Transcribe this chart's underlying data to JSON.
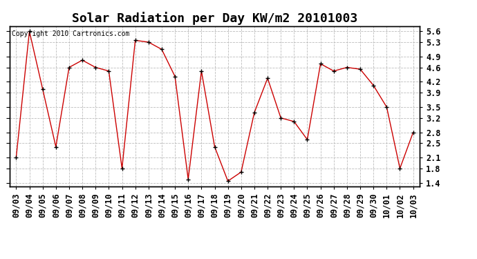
{
  "title": "Solar Radiation per Day KW/m2 20101003",
  "copyright_text": "Copyright 2010 Cartronics.com",
  "dates": [
    "09/03",
    "09/04",
    "09/05",
    "09/06",
    "09/07",
    "09/08",
    "09/09",
    "09/10",
    "09/11",
    "09/12",
    "09/13",
    "09/14",
    "09/15",
    "09/16",
    "09/17",
    "09/18",
    "09/19",
    "09/20",
    "09/21",
    "09/22",
    "09/23",
    "09/24",
    "09/25",
    "09/26",
    "09/27",
    "09/28",
    "09/29",
    "09/30",
    "10/01",
    "10/02",
    "10/03"
  ],
  "values": [
    2.1,
    5.6,
    4.0,
    2.4,
    4.6,
    4.8,
    4.6,
    4.5,
    1.8,
    5.35,
    5.3,
    5.1,
    4.35,
    1.5,
    4.5,
    2.4,
    1.45,
    1.7,
    3.35,
    4.3,
    3.2,
    3.1,
    2.6,
    4.7,
    4.5,
    4.6,
    4.55,
    4.1,
    3.5,
    1.8,
    2.8
  ],
  "line_color": "#cc0000",
  "marker_color": "#000000",
  "bg_color": "#ffffff",
  "grid_color": "#bbbbbb",
  "ylim_min": 1.3,
  "ylim_max": 5.75,
  "yticks": [
    1.4,
    1.8,
    2.1,
    2.5,
    2.8,
    3.2,
    3.5,
    3.9,
    4.2,
    4.6,
    4.9,
    5.3,
    5.6
  ],
  "title_fontsize": 13,
  "copyright_fontsize": 7,
  "tick_fontsize": 8.5
}
